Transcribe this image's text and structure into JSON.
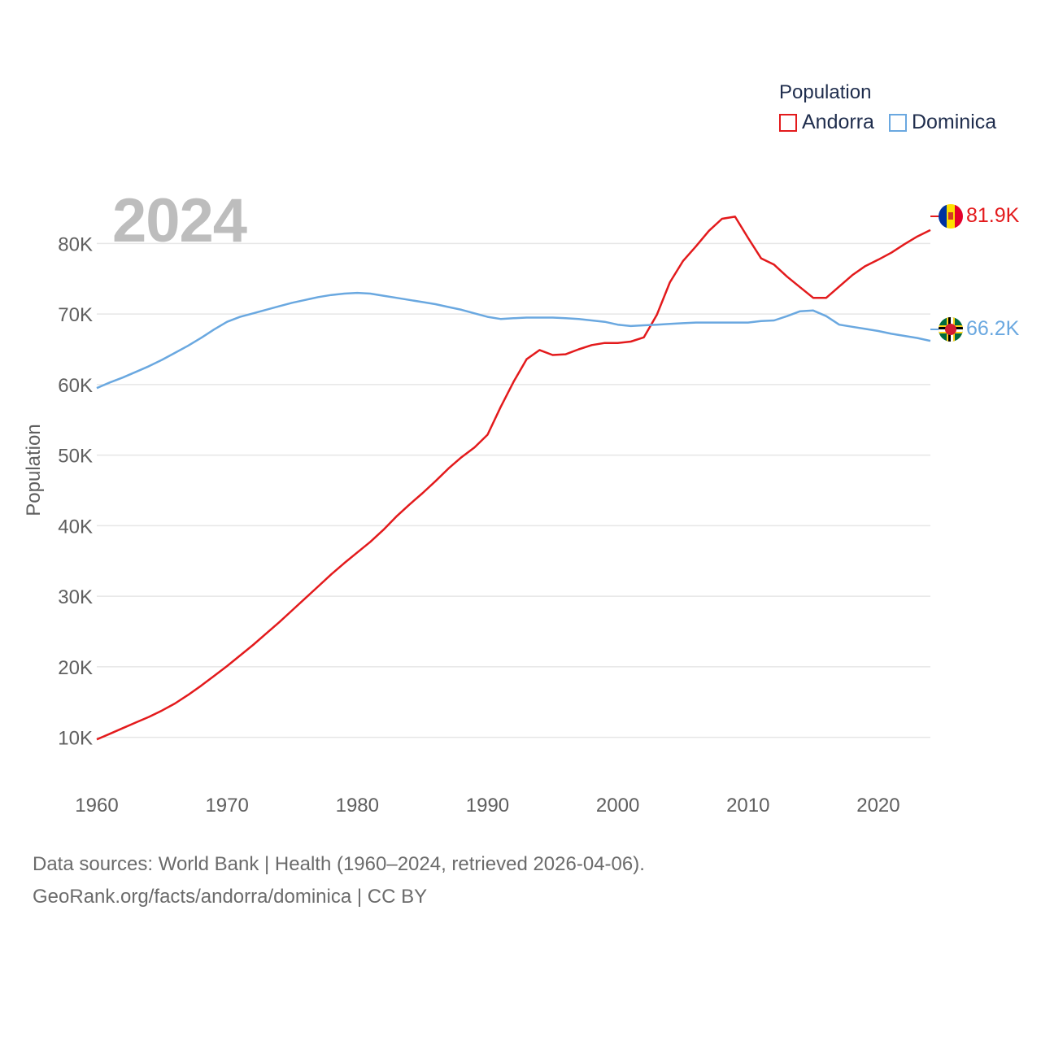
{
  "legend": {
    "title": "Population",
    "items": [
      {
        "name": "Andorra",
        "color": "#e31a1c"
      },
      {
        "name": "Dominica",
        "color": "#6aa8e0"
      }
    ]
  },
  "current_year": "2024",
  "end_labels": {
    "andorra": "81.9K",
    "dominica": "66.2K"
  },
  "footer": {
    "line1": "Data sources: World Bank | Health (1960–2024, retrieved 2026-04-06).",
    "line2": "GeoRank.org/facts/andorra/dominica | CC BY"
  },
  "chart_data": {
    "type": "line",
    "title": "",
    "xlabel": "",
    "ylabel": "Population",
    "xlim": [
      1960,
      2024
    ],
    "ylim": [
      5000,
      88000
    ],
    "x_ticks": [
      1960,
      1970,
      1980,
      1990,
      2000,
      2010,
      2020
    ],
    "x_tick_labels": [
      "1960",
      "1970",
      "1980",
      "1990",
      "2000",
      "2010",
      "2020"
    ],
    "y_ticks": [
      10000,
      20000,
      30000,
      40000,
      50000,
      60000,
      70000,
      80000
    ],
    "y_tick_labels": [
      "10K",
      "20K",
      "30K",
      "40K",
      "50K",
      "60K",
      "70K",
      "80K"
    ],
    "grid": true,
    "x": [
      1960,
      1961,
      1962,
      1963,
      1964,
      1965,
      1966,
      1967,
      1968,
      1969,
      1970,
      1971,
      1972,
      1973,
      1974,
      1975,
      1976,
      1977,
      1978,
      1979,
      1980,
      1981,
      1982,
      1983,
      1984,
      1985,
      1986,
      1987,
      1988,
      1989,
      1990,
      1991,
      1992,
      1993,
      1994,
      1995,
      1996,
      1997,
      1998,
      1999,
      2000,
      2001,
      2002,
      2003,
      2004,
      2005,
      2006,
      2007,
      2008,
      2009,
      2010,
      2011,
      2012,
      2013,
      2014,
      2015,
      2016,
      2017,
      2018,
      2019,
      2020,
      2021,
      2022,
      2023,
      2024
    ],
    "series": [
      {
        "name": "Andorra",
        "color": "#e31a1c",
        "values": [
          9700,
          10500,
          11300,
          12100,
          12900,
          13800,
          14800,
          16000,
          17300,
          18700,
          20100,
          21600,
          23100,
          24700,
          26300,
          28000,
          29700,
          31400,
          33100,
          34700,
          36200,
          37700,
          39400,
          41300,
          43000,
          44600,
          46300,
          48100,
          49700,
          51100,
          52900,
          56800,
          60400,
          63600,
          64900,
          64200,
          64300,
          65000,
          65600,
          65900,
          65900,
          66100,
          66700,
          69900,
          74500,
          77500,
          79600,
          81800,
          83500,
          83800,
          80800,
          77900,
          77000,
          75300,
          73800,
          72300,
          72300,
          73900,
          75500,
          76800,
          77700,
          78700,
          79900,
          81000,
          81900
        ]
      },
      {
        "name": "Dominica",
        "color": "#6aa8e0",
        "values": [
          59500,
          60300,
          61000,
          61800,
          62600,
          63500,
          64500,
          65500,
          66600,
          67800,
          68900,
          69600,
          70100,
          70600,
          71100,
          71600,
          72000,
          72400,
          72700,
          72900,
          73000,
          72900,
          72600,
          72300,
          72000,
          71700,
          71400,
          71000,
          70600,
          70100,
          69600,
          69300,
          69400,
          69500,
          69500,
          69500,
          69400,
          69300,
          69100,
          68900,
          68500,
          68300,
          68400,
          68500,
          68600,
          68700,
          68800,
          68800,
          68800,
          68800,
          68800,
          69000,
          69100,
          69700,
          70400,
          70500,
          69700,
          68500,
          68200,
          67900,
          67600,
          67200,
          66900,
          66600,
          66200
        ]
      }
    ]
  }
}
